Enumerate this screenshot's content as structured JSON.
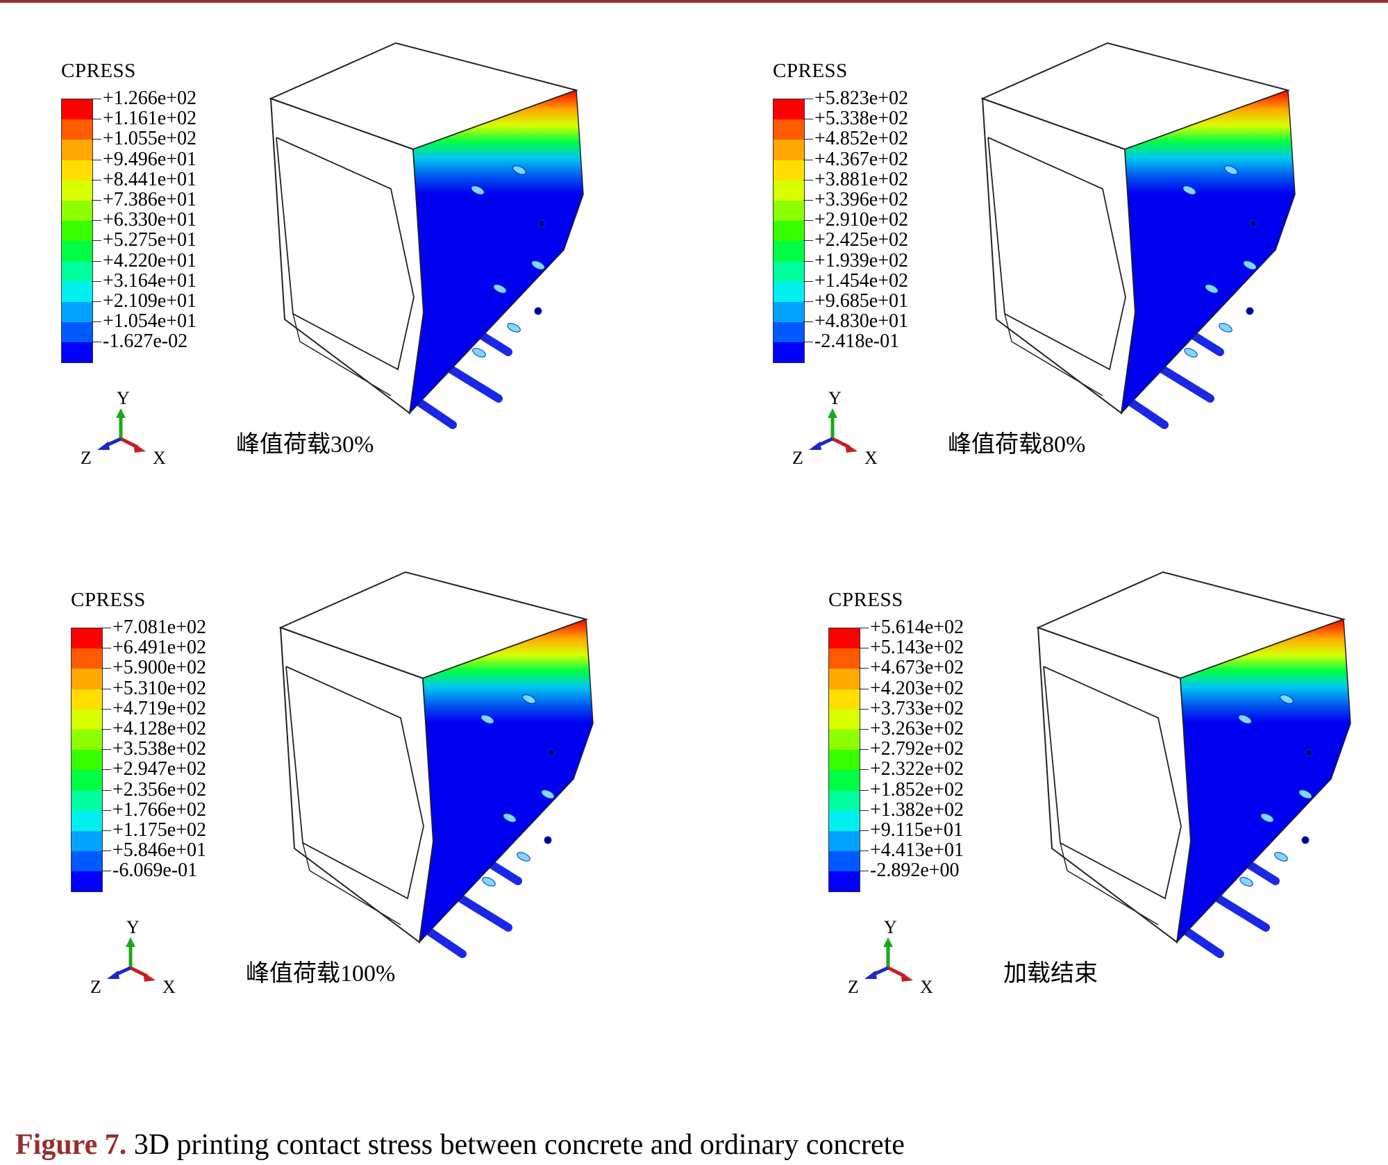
{
  "legend_title": "CPRESS",
  "legend_colors": [
    "#ff0000",
    "#ff5a00",
    "#ffa800",
    "#ffde00",
    "#d8ff00",
    "#8cff00",
    "#38ff00",
    "#00ff44",
    "#00ffa0",
    "#00f0f0",
    "#00a4ff",
    "#005aff",
    "#0000ff"
  ],
  "axis_labels": {
    "y": "Y",
    "z": "Z",
    "x": "X"
  },
  "panels": [
    {
      "stage": "峰值荷载30%",
      "values": [
        "+1.266e+02",
        "+1.161e+02",
        "+1.055e+02",
        "+9.496e+01",
        "+8.441e+01",
        "+7.386e+01",
        "+6.330e+01",
        "+5.275e+01",
        "+4.220e+01",
        "+3.164e+01",
        "+2.109e+01",
        "+1.054e+01",
        "-1.627e-02"
      ]
    },
    {
      "stage": "峰值荷载80%",
      "values": [
        "+5.823e+02",
        "+5.338e+02",
        "+4.852e+02",
        "+4.367e+02",
        "+3.881e+02",
        "+3.396e+02",
        "+2.910e+02",
        "+2.425e+02",
        "+1.939e+02",
        "+1.454e+02",
        "+9.685e+01",
        "+4.830e+01",
        "-2.418e-01"
      ]
    },
    {
      "stage": "峰值荷载100%",
      "values": [
        "+7.081e+02",
        "+6.491e+02",
        "+5.900e+02",
        "+5.310e+02",
        "+4.719e+02",
        "+4.128e+02",
        "+3.538e+02",
        "+2.947e+02",
        "+2.356e+02",
        "+1.766e+02",
        "+1.175e+02",
        "+5.846e+01",
        "-6.069e-01"
      ]
    },
    {
      "stage": "加载结束",
      "values": [
        "+5.614e+02",
        "+5.143e+02",
        "+4.673e+02",
        "+4.203e+02",
        "+3.733e+02",
        "+3.263e+02",
        "+2.792e+02",
        "+2.322e+02",
        "+1.852e+02",
        "+1.382e+02",
        "+9.115e+01",
        "+4.413e+01",
        "-2.892e+00"
      ]
    }
  ],
  "caption": {
    "figure_label": "Figure 7.",
    "text": " 3D printing contact stress between concrete and ordinary concrete"
  }
}
